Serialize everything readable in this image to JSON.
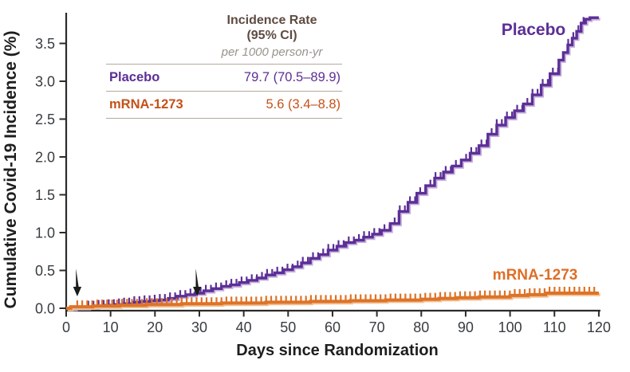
{
  "figure": {
    "y_axis_title": "Cumulative Covid-19 Incidence (%)",
    "x_axis_title": "Days since Randomization"
  },
  "legend_table": {
    "header_line1": "Incidence Rate",
    "header_line2": "(95% CI)",
    "subheader": "per 1000 person-yr",
    "rows": [
      {
        "label": "Placebo",
        "value": "79.7 (70.5–89.9)",
        "color": "#5C2F96"
      },
      {
        "label": "mRNA-1273",
        "value": "5.6 (3.4–8.8)",
        "color": "#C4511A"
      }
    ],
    "header_color": "#5E4B42",
    "subheader_color": "#98938C",
    "rule_color": "#B3A99E"
  },
  "chart_data": {
    "type": "line",
    "variant": "cumulative-incidence-step-curves-with-censor-ticks",
    "title": "",
    "xlabel": "Days since Randomization",
    "ylabel": "Cumulative Covid-19 Incidence (%)",
    "xlim": [
      0,
      120
    ],
    "ylim": [
      0,
      3.9
    ],
    "grid": false,
    "x_ticks": [
      0,
      10,
      20,
      30,
      40,
      50,
      60,
      70,
      80,
      90,
      100,
      110,
      120
    ],
    "y_ticks": [
      0,
      0.5,
      1,
      1.5,
      2,
      2.5,
      3,
      3.5
    ],
    "y_tick_labels": [
      "0.0",
      "0.5",
      "1.0",
      "1.5",
      "2.0",
      "2.5",
      "3.0",
      "3.5"
    ],
    "axis_color": "#2D2B29",
    "tick_label_color": "#373C40",
    "dose_arrow_days": [
      2.5,
      29.5
    ],
    "dose_arrow_color": "#1b1b19",
    "series": [
      {
        "name": "Placebo",
        "color": "#5C2F96",
        "shadow_color": "#C6AFDC",
        "label_color": "#5C2F96",
        "incidence_rate_per_1000py": "79.7 (70.5–89.9)",
        "final_value_pct": 3.84,
        "censor_ticks": {
          "from": 5,
          "to": 117.5,
          "step": 1.15,
          "len": 7.5
        },
        "points_day_pct": [
          [
            0,
            0
          ],
          [
            2,
            0.01
          ],
          [
            5,
            0.02
          ],
          [
            7,
            0.03
          ],
          [
            9,
            0.04
          ],
          [
            11,
            0.05
          ],
          [
            13,
            0.06
          ],
          [
            15,
            0.08
          ],
          [
            17,
            0.09
          ],
          [
            19,
            0.1
          ],
          [
            21,
            0.11
          ],
          [
            23,
            0.13
          ],
          [
            25,
            0.16
          ],
          [
            27,
            0.18
          ],
          [
            29,
            0.2
          ],
          [
            31,
            0.23
          ],
          [
            33,
            0.26
          ],
          [
            35,
            0.29
          ],
          [
            37,
            0.31
          ],
          [
            39,
            0.34
          ],
          [
            41,
            0.37
          ],
          [
            43,
            0.4
          ],
          [
            45,
            0.44
          ],
          [
            47,
            0.47
          ],
          [
            49,
            0.51
          ],
          [
            51,
            0.55
          ],
          [
            53,
            0.6
          ],
          [
            55,
            0.66
          ],
          [
            57,
            0.71
          ],
          [
            59,
            0.77
          ],
          [
            61,
            0.82
          ],
          [
            63,
            0.87
          ],
          [
            65,
            0.9
          ],
          [
            67,
            0.94
          ],
          [
            69,
            0.98
          ],
          [
            71,
            1.03
          ],
          [
            73,
            1.12
          ],
          [
            75,
            1.28
          ],
          [
            77,
            1.4
          ],
          [
            79,
            1.52
          ],
          [
            81,
            1.62
          ],
          [
            83,
            1.72
          ],
          [
            85,
            1.8
          ],
          [
            87,
            1.88
          ],
          [
            89,
            1.96
          ],
          [
            91,
            2.05
          ],
          [
            93,
            2.15
          ],
          [
            95,
            2.3
          ],
          [
            97,
            2.42
          ],
          [
            99,
            2.52
          ],
          [
            101,
            2.61
          ],
          [
            103,
            2.7
          ],
          [
            105,
            2.82
          ],
          [
            107,
            2.95
          ],
          [
            109,
            3.1
          ],
          [
            111,
            3.28
          ],
          [
            112,
            3.38
          ],
          [
            113,
            3.48
          ],
          [
            114,
            3.57
          ],
          [
            115,
            3.66
          ],
          [
            116,
            3.77
          ],
          [
            117,
            3.82
          ],
          [
            118,
            3.84
          ],
          [
            120,
            3.84
          ]
        ]
      },
      {
        "name": "mRNA-1273",
        "color": "#DD7328",
        "shadow_color": "#F2C093",
        "label_color": "#DF6E28",
        "incidence_rate_per_1000py": "5.6 (3.4–8.8)",
        "final_value_pct": 0.2,
        "censor_ticks": {
          "from": 2.5,
          "to": 119,
          "step": 1.12,
          "len": 8
        },
        "points_day_pct": [
          [
            0,
            0
          ],
          [
            1,
            0.02
          ],
          [
            6,
            0.03
          ],
          [
            12,
            0.04
          ],
          [
            18,
            0.05
          ],
          [
            26,
            0.06
          ],
          [
            35,
            0.07
          ],
          [
            45,
            0.08
          ],
          [
            55,
            0.09
          ],
          [
            64,
            0.1
          ],
          [
            72,
            0.11
          ],
          [
            80,
            0.12
          ],
          [
            84,
            0.13
          ],
          [
            88,
            0.14
          ],
          [
            93,
            0.15
          ],
          [
            100,
            0.17
          ],
          [
            104,
            0.18
          ],
          [
            108,
            0.2
          ],
          [
            120,
            0.2
          ]
        ]
      }
    ]
  }
}
